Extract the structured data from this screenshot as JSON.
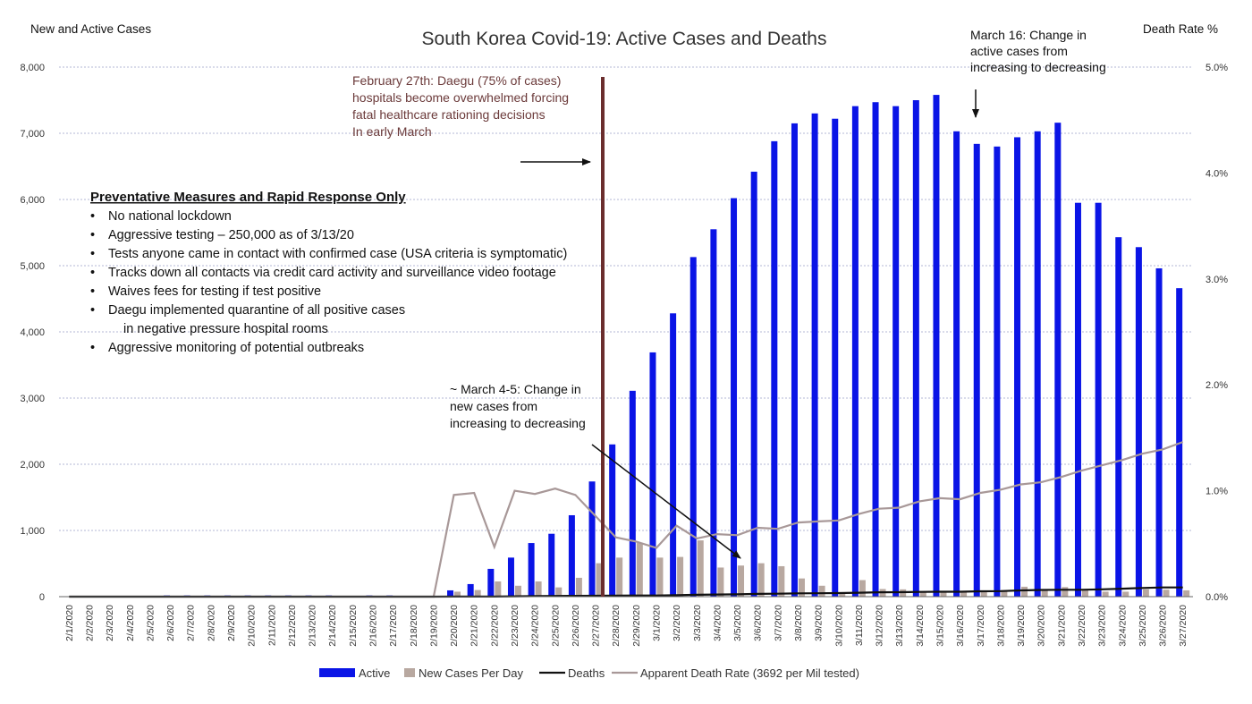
{
  "chart_data": {
    "type": "bar",
    "title": "South Korea Covid-19: Active Cases and Deaths",
    "ylabel": "New and Active Cases",
    "y2label": "Death Rate %",
    "ylim": [
      0,
      8000
    ],
    "y2lim": [
      0,
      5.0
    ],
    "yticks": [
      "0",
      "1,000",
      "2,000",
      "3,000",
      "4,000",
      "5,000",
      "6,000",
      "7,000",
      "8,000"
    ],
    "y2ticks": [
      "0.0%",
      "1.0%",
      "2.0%",
      "3.0%",
      "4.0%",
      "5.0%"
    ],
    "grid": true,
    "legend_position": "bottom",
    "categories": [
      "2/1/2020",
      "2/2/2020",
      "2/3/2020",
      "2/4/2020",
      "2/5/2020",
      "2/6/2020",
      "2/7/2020",
      "2/8/2020",
      "2/9/2020",
      "2/10/2020",
      "2/11/2020",
      "2/12/2020",
      "2/13/2020",
      "2/14/2020",
      "2/15/2020",
      "2/16/2020",
      "2/17/2020",
      "2/18/2020",
      "2/19/2020",
      "2/20/2020",
      "2/21/2020",
      "2/22/2020",
      "2/23/2020",
      "2/24/2020",
      "2/25/2020",
      "2/26/2020",
      "2/27/2020",
      "2/28/2020",
      "2/29/2020",
      "3/1/2020",
      "3/2/2020",
      "3/3/2020",
      "3/4/2020",
      "3/5/2020",
      "3/6/2020",
      "3/7/2020",
      "3/8/2020",
      "3/9/2020",
      "3/10/2020",
      "3/11/2020",
      "3/12/2020",
      "3/13/2020",
      "3/14/2020",
      "3/15/2020",
      "3/16/2020",
      "3/17/2020",
      "3/18/2020",
      "3/19/2020",
      "3/20/2020",
      "3/21/2020",
      "3/22/2020",
      "3/23/2020",
      "3/24/2020",
      "3/25/2020",
      "3/26/2020",
      "3/27/2020"
    ],
    "series": [
      {
        "name": "Active",
        "type": "bar",
        "axis": "left",
        "color": "#0a14e6",
        "values": [
          0,
          0,
          0,
          0,
          0,
          18,
          18,
          18,
          18,
          18,
          18,
          18,
          18,
          18,
          0,
          18,
          18,
          0,
          0,
          95,
          190,
          420,
          590,
          810,
          950,
          1230,
          1740,
          2300,
          3110,
          3690,
          4280,
          5130,
          5550,
          6020,
          6420,
          6880,
          7150,
          7300,
          7220,
          7410,
          7470,
          7410,
          7500,
          7580,
          7030,
          6840,
          6800,
          6940,
          7030,
          7160,
          5950,
          5950,
          5430,
          5280,
          4960,
          4660
        ]
      },
      {
        "name": "New Cases Per Day",
        "type": "bar",
        "axis": "left",
        "color": "#b8a8a0",
        "values": [
          0,
          0,
          0,
          0,
          0,
          0,
          0,
          0,
          0,
          0,
          0,
          0,
          0,
          0,
          0,
          0,
          0,
          0,
          0,
          75,
          100,
          230,
          165,
          230,
          140,
          285,
          505,
          590,
          810,
          590,
          600,
          850,
          440,
          470,
          505,
          460,
          275,
          165,
          40,
          250,
          115,
          110,
          80,
          75,
          75,
          85,
          95,
          150,
          90,
          145,
          100,
          75,
          75,
          110,
          105,
          95
        ]
      },
      {
        "name": "Deaths",
        "type": "line",
        "axis": "left",
        "color": "#111111",
        "values": [
          0,
          0,
          0,
          0,
          0,
          0,
          0,
          0,
          0,
          0,
          0,
          0,
          0,
          0,
          0,
          0,
          0,
          0,
          0,
          1,
          2,
          2,
          6,
          8,
          11,
          12,
          13,
          16,
          17,
          17,
          22,
          28,
          32,
          35,
          42,
          44,
          50,
          51,
          54,
          60,
          66,
          67,
          72,
          75,
          75,
          81,
          84,
          94,
          102,
          104,
          104,
          111,
          120,
          131,
          139,
          139
        ]
      },
      {
        "name": "Apparent Death Rate (3692 per Mil tested)",
        "type": "line",
        "axis": "right",
        "color": "#a89898",
        "values": [
          0,
          0,
          0,
          0,
          0,
          0,
          0,
          0,
          0,
          0,
          0,
          0,
          0,
          0,
          0,
          0,
          0,
          0,
          0,
          0.96,
          0.98,
          0.47,
          1.0,
          0.97,
          1.02,
          0.96,
          0.76,
          0.56,
          0.52,
          0.46,
          0.67,
          0.55,
          0.59,
          0.58,
          0.65,
          0.64,
          0.7,
          0.71,
          0.72,
          0.78,
          0.83,
          0.84,
          0.9,
          0.93,
          0.92,
          0.98,
          1.01,
          1.06,
          1.08,
          1.13,
          1.19,
          1.24,
          1.29,
          1.35,
          1.39,
          1.46
        ]
      }
    ]
  },
  "annotations": {
    "feb27": [
      "February 27th: Daegu (75% of cases)",
      "hospitals become overwhelmed forcing",
      "fatal healthcare rationing decisions",
      "In early March"
    ],
    "mar16": [
      "March 16: Change in",
      "active cases from",
      "increasing to decreasing"
    ],
    "mar45": [
      "~ March 4-5: Change in",
      "new cases from",
      "increasing to decreasing"
    ]
  },
  "measures": {
    "title": "Preventative Measures and Rapid Response Only",
    "bullet": "•",
    "items": [
      "No national lockdown",
      "Aggressive testing – 250,000  as of 3/13/20",
      "Tests anyone came in contact with confirmed case (USA criteria is symptomatic)",
      "Tracks down all contacts via credit card activity and surveillance video footage",
      "Waives fees for testing if test positive",
      "Daegu implemented quarantine of all positive cases",
      "in negative pressure hospital rooms",
      "Aggressive monitoring of potential outbreaks"
    ]
  }
}
